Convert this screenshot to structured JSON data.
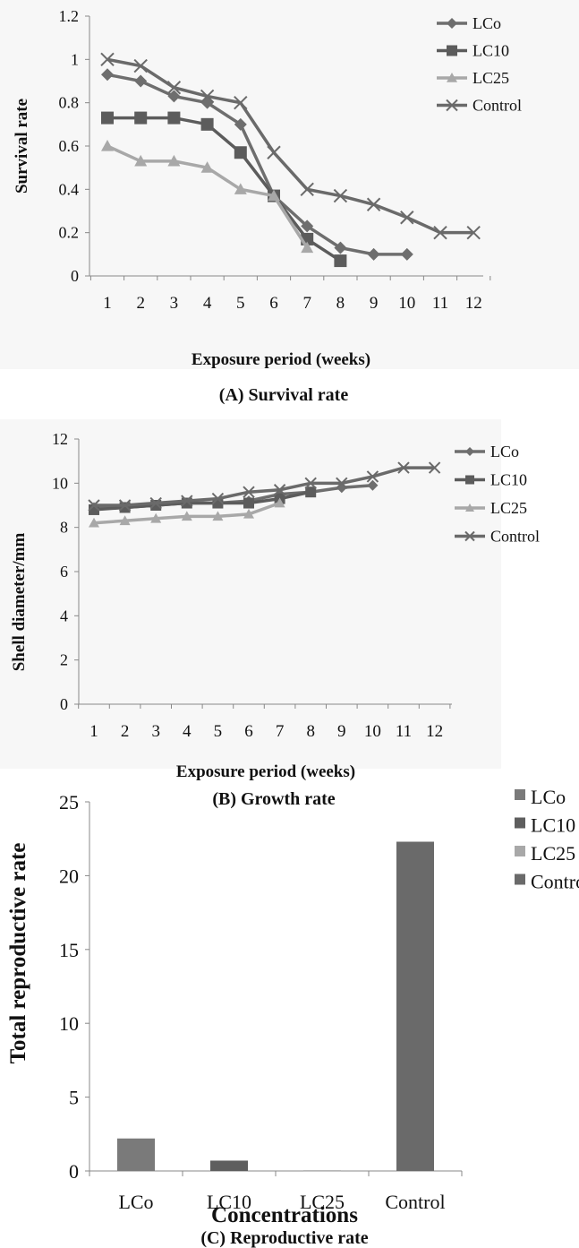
{
  "chart_data": [
    {
      "type": "line",
      "panel": "A",
      "caption": "(A) Survival rate",
      "xlabel": "Exposure period (weeks)",
      "ylabel": "Survival rate",
      "categories": [
        "1",
        "2",
        "3",
        "4",
        "5",
        "6",
        "7",
        "8",
        "9",
        "10",
        "11",
        "12"
      ],
      "ylim": [
        0,
        1.2
      ],
      "yticks": [
        "0",
        "0.2",
        "0.4",
        "0.6",
        "0.8",
        "1",
        "1.2"
      ],
      "grid": false,
      "legend_position": "right",
      "series": [
        {
          "name": "LCo",
          "marker": "diamond",
          "color": "#6e6e6e",
          "values": [
            0.93,
            0.9,
            0.83,
            0.8,
            0.7,
            0.37,
            0.23,
            0.13,
            0.1,
            0.1,
            null,
            null
          ]
        },
        {
          "name": "LC10",
          "marker": "square",
          "color": "#5c5c5c",
          "values": [
            0.73,
            0.73,
            0.73,
            0.7,
            0.57,
            0.37,
            0.17,
            0.07,
            null,
            null,
            null,
            null
          ]
        },
        {
          "name": "LC25",
          "marker": "triangle",
          "color": "#a8a8a8",
          "values": [
            0.6,
            0.53,
            0.53,
            0.5,
            0.4,
            0.37,
            0.13,
            null,
            null,
            null,
            null,
            null
          ]
        },
        {
          "name": "Control",
          "marker": "x",
          "color": "#6a6a6a",
          "values": [
            1.0,
            0.97,
            0.87,
            0.83,
            0.8,
            0.57,
            0.4,
            0.37,
            0.33,
            0.27,
            0.2,
            0.2
          ]
        }
      ]
    },
    {
      "type": "line",
      "panel": "B",
      "caption": "(B) Growth rate",
      "xlabel": "Exposure period (weeks)",
      "ylabel": "Shell diameter/mm",
      "categories": [
        "1",
        "2",
        "3",
        "4",
        "5",
        "6",
        "7",
        "8",
        "9",
        "10",
        "11",
        "12"
      ],
      "ylim": [
        0,
        12
      ],
      "yticks": [
        "0",
        "2",
        "4",
        "6",
        "8",
        "10",
        "12"
      ],
      "grid": false,
      "legend_position": "right",
      "series": [
        {
          "name": "LCo",
          "marker": "diamond",
          "color": "#6e6e6e",
          "values": [
            8.9,
            8.9,
            9.0,
            9.1,
            9.1,
            9.2,
            9.5,
            9.6,
            9.8,
            9.9,
            null,
            null
          ]
        },
        {
          "name": "LC10",
          "marker": "square",
          "color": "#5c5c5c",
          "values": [
            8.8,
            8.9,
            9.0,
            9.1,
            9.1,
            9.1,
            9.3,
            9.6,
            null,
            null,
            null,
            null
          ]
        },
        {
          "name": "LC25",
          "marker": "triangle",
          "color": "#a8a8a8",
          "values": [
            8.2,
            8.3,
            8.4,
            8.5,
            8.5,
            8.6,
            9.1,
            null,
            null,
            null,
            null,
            null
          ]
        },
        {
          "name": "Control",
          "marker": "x",
          "color": "#6a6a6a",
          "values": [
            9.0,
            9.0,
            9.1,
            9.2,
            9.3,
            9.6,
            9.7,
            10.0,
            10.0,
            10.3,
            10.7,
            10.7
          ]
        }
      ]
    },
    {
      "type": "bar",
      "panel": "C",
      "caption": "(C) Reproductive rate",
      "xlabel": "Concentrations",
      "ylabel": "Total reproductive rate",
      "categories": [
        "LCo",
        "LC10",
        "LC25",
        "Control"
      ],
      "values": [
        2.2,
        0.7,
        0.05,
        22.3
      ],
      "colors": [
        "#7a7a7a",
        "#5e5e5e",
        "#a8a8a8",
        "#6a6a6a"
      ],
      "ylim": [
        0,
        25
      ],
      "yticks": [
        "0",
        "5",
        "10",
        "15",
        "20",
        "25"
      ],
      "grid": false,
      "legend_position": "right",
      "legend": [
        "LCo",
        "LC10",
        "LC25",
        "Control"
      ]
    }
  ]
}
